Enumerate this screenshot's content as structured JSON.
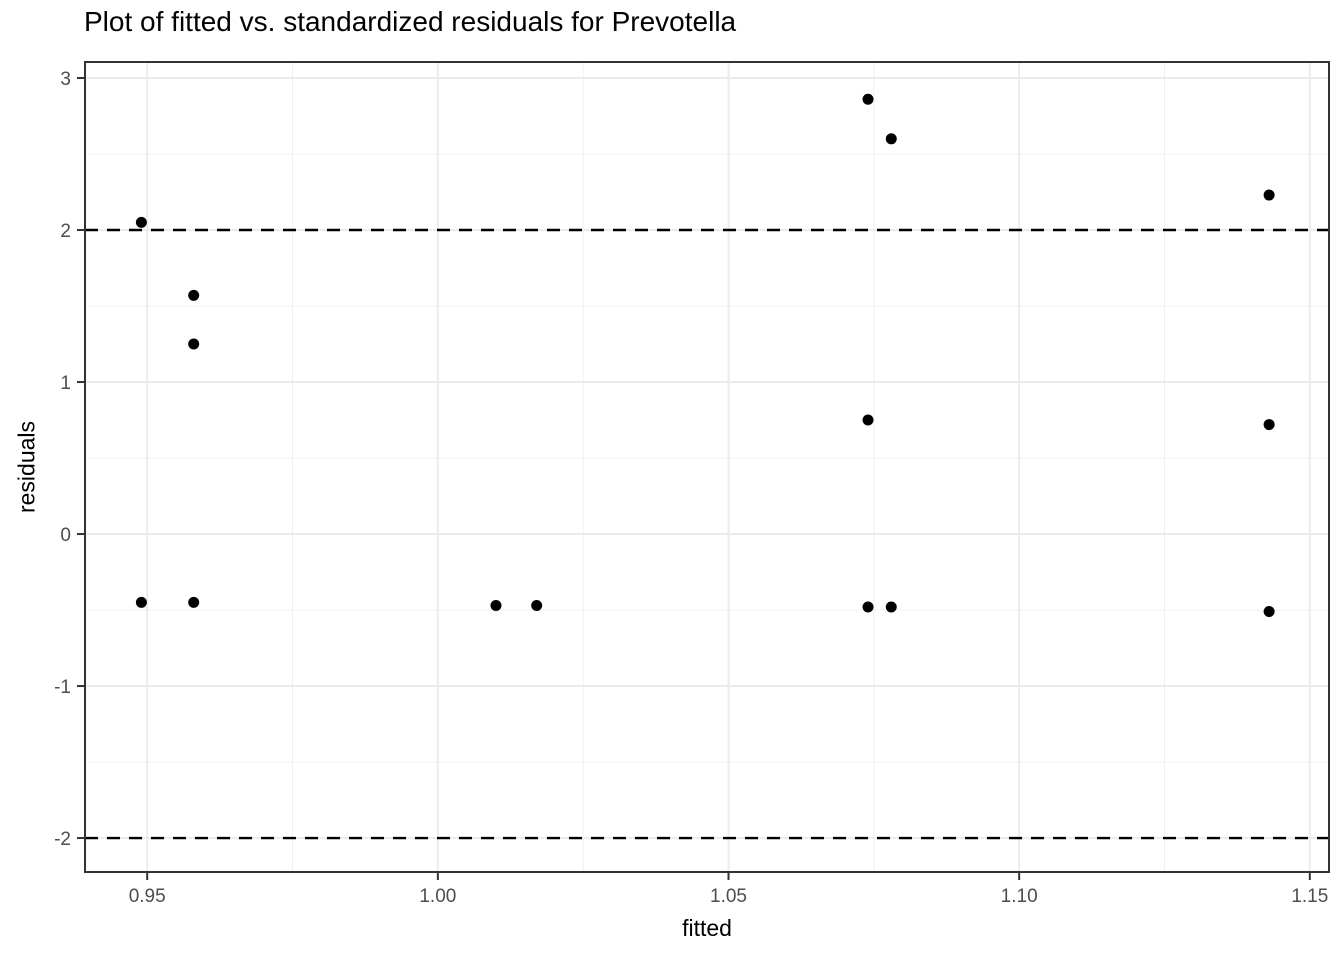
{
  "chart_data": {
    "type": "scatter",
    "title": "Plot of fitted vs. standardized residuals for Prevotella",
    "xlabel": "fitted",
    "ylabel": "residuals",
    "xlim": [
      0.9393,
      1.1533
    ],
    "ylim": [
      -2.2235,
      3.1053
    ],
    "x_ticks": [
      0.95,
      1.0,
      1.05,
      1.1,
      1.15
    ],
    "x_tick_labels": [
      "0.95",
      "1.00",
      "1.05",
      "1.10",
      "1.15"
    ],
    "x_minor_ticks": [
      0.975,
      1.025,
      1.075,
      1.125
    ],
    "y_ticks": [
      3,
      2,
      1,
      0,
      -1,
      -2
    ],
    "y_tick_labels": [
      "3",
      "2",
      "1",
      "0",
      "-1",
      "-2"
    ],
    "y_minor_ticks": [
      2.5,
      1.5,
      0.5,
      -0.5,
      -1.5
    ],
    "grid": true,
    "legend": false,
    "threshold_lines": [
      {
        "y": 2,
        "style": "dashed"
      },
      {
        "y": -2,
        "style": "dashed"
      }
    ],
    "points": [
      {
        "x": 0.949,
        "y": 2.05
      },
      {
        "x": 0.958,
        "y": 1.57
      },
      {
        "x": 0.958,
        "y": 1.25
      },
      {
        "x": 0.949,
        "y": -0.45
      },
      {
        "x": 0.958,
        "y": -0.45
      },
      {
        "x": 1.01,
        "y": -0.47
      },
      {
        "x": 1.017,
        "y": -0.47
      },
      {
        "x": 1.074,
        "y": 2.86
      },
      {
        "x": 1.078,
        "y": 2.6
      },
      {
        "x": 1.074,
        "y": 0.75
      },
      {
        "x": 1.074,
        "y": -0.48
      },
      {
        "x": 1.078,
        "y": -0.48
      },
      {
        "x": 1.143,
        "y": 2.23
      },
      {
        "x": 1.143,
        "y": 0.72
      },
      {
        "x": 1.143,
        "y": -0.51
      }
    ],
    "colors": {
      "point": "#000000",
      "grid_major": "#ebebeb",
      "grid_minor": "#f0f0f0",
      "panel_border": "#333333",
      "tick_mark": "#333333",
      "axis_text": "#4d4d4d",
      "threshold_line": "#000000",
      "background": "#ffffff"
    }
  }
}
